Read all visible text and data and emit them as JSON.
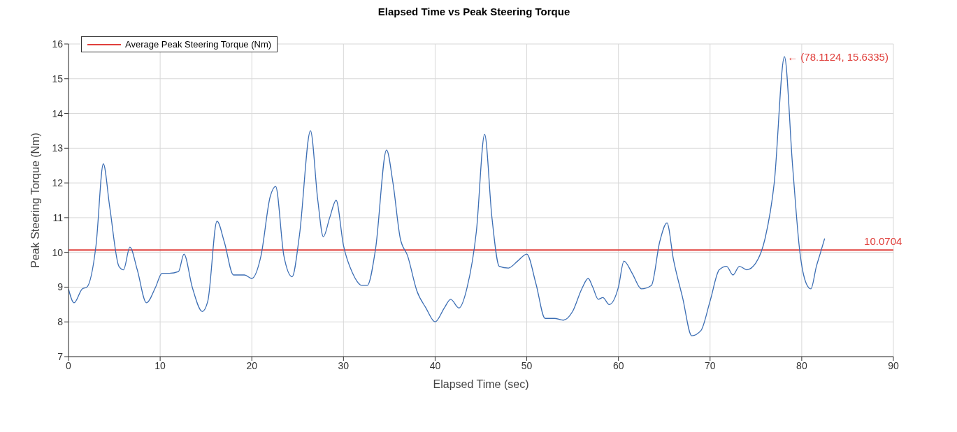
{
  "chart_data": {
    "type": "line",
    "title": "Elapsed Time vs Peak Steering Torque",
    "xlabel": "Elapsed Time (sec)",
    "ylabel": "Peak Steering Torque (Nm)",
    "series": [
      {
        "color": "#3c6eb4",
        "x": [
          0,
          0.6,
          1.5,
          2,
          3,
          3.8,
          4.5,
          5.5,
          6,
          6.7,
          7.5,
          8.5,
          9.5,
          10.2,
          11,
          12,
          12.6,
          13.5,
          14.6,
          15.2,
          16.2,
          17,
          18,
          19.2,
          20,
          21,
          22,
          22.6,
          23.5,
          24.4,
          25.2,
          26.4,
          27.2,
          27.8,
          28.5,
          29.2,
          30,
          31,
          32,
          32.6,
          33.5,
          34.7,
          35.4,
          36.2,
          37,
          38,
          39,
          40,
          41,
          41.7,
          42.6,
          43.5,
          44.5,
          45.4,
          46.2,
          47,
          48,
          49,
          50,
          51,
          52,
          53,
          54,
          55,
          56,
          56.7,
          57.2,
          57.8,
          58.3,
          59,
          60,
          60.6,
          61.5,
          62.5,
          63.6,
          64.5,
          65.3,
          66,
          67,
          68,
          69,
          70,
          71,
          71.8,
          72.5,
          73.2,
          74,
          75,
          76,
          77,
          78.1124,
          79,
          79.8,
          80.5,
          81,
          81.6,
          82,
          82.5
        ],
        "values": [
          8.95,
          8.55,
          8.95,
          9.0,
          10.2,
          12.55,
          11.3,
          9.6,
          9.5,
          10.15,
          9.5,
          8.55,
          9.0,
          9.4,
          9.4,
          9.45,
          9.95,
          9.0,
          8.3,
          8.6,
          10.9,
          10.3,
          9.35,
          9.35,
          9.25,
          9.9,
          11.6,
          11.9,
          9.9,
          9.3,
          10.5,
          13.5,
          11.5,
          10.45,
          11.0,
          11.5,
          10.2,
          9.4,
          9.05,
          9.05,
          10.1,
          12.95,
          12.0,
          10.4,
          9.9,
          8.9,
          8.4,
          8.0,
          8.4,
          8.65,
          8.4,
          9.0,
          10.6,
          13.4,
          11.0,
          9.6,
          9.55,
          9.75,
          9.95,
          9.1,
          8.1,
          8.1,
          8.05,
          8.3,
          8.95,
          9.25,
          9.0,
          8.65,
          8.7,
          8.5,
          9.0,
          9.75,
          9.4,
          8.95,
          9.05,
          10.3,
          10.85,
          9.8,
          8.7,
          7.6,
          7.75,
          8.6,
          9.5,
          9.6,
          9.35,
          9.6,
          9.5,
          9.7,
          10.4,
          12.0,
          15.6335,
          12.5,
          10.0,
          9.1,
          8.95,
          9.6,
          9.95,
          10.4
        ]
      }
    ],
    "ref_lines": [
      {
        "axis": "y",
        "value": 10.0704,
        "label": "Average Peak Steering Torque (Nm)",
        "color": "#e0403c"
      }
    ],
    "annotations": [
      {
        "text": "← (78.1124, 15.6335)",
        "x": 78.1124,
        "y": 15.6335
      },
      {
        "text": "10.0704",
        "x": 86.5,
        "y": 10.0704
      }
    ],
    "xlim": [
      0,
      90
    ],
    "xticks": [
      0,
      10,
      20,
      30,
      40,
      50,
      60,
      70,
      80,
      90
    ],
    "ylim": [
      7,
      16
    ],
    "yticks": [
      7,
      8,
      9,
      10,
      11,
      12,
      13,
      14,
      15,
      16
    ],
    "grid": true,
    "legend": "top left",
    "marker": "none",
    "line_style": "solid"
  }
}
